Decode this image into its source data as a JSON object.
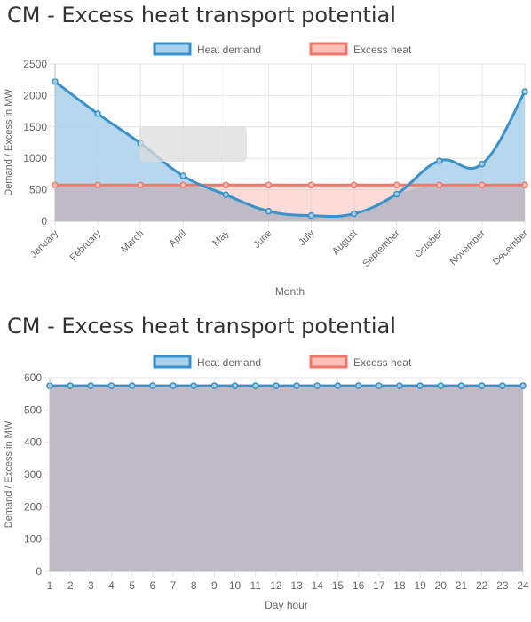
{
  "colors": {
    "heat_demand_line": "#3a92c8",
    "heat_demand_fill": "#a9d0ea",
    "excess_heat_line": "#f0786a",
    "excess_heat_fill": "#f8c0b8",
    "overlap_fill": "#b9b9c6",
    "grid": "#e6e6e6",
    "axis_text": "#666666",
    "tooltip_placeholder": "#dcdcdc"
  },
  "chart_data": [
    {
      "type": "line",
      "title": "CM - Excess heat transport potential",
      "xlabel": "Month",
      "ylabel": "Demand / Excess in MW",
      "ylim": [
        0,
        2500
      ],
      "yticks": [
        0,
        500,
        1000,
        1500,
        2000,
        2500
      ],
      "grid": true,
      "filled": true,
      "legend": {
        "position": "top",
        "entries": [
          "Heat demand",
          "Excess heat"
        ]
      },
      "categories": [
        "January",
        "February",
        "March",
        "April",
        "May",
        "June",
        "July",
        "August",
        "September",
        "October",
        "November",
        "December"
      ],
      "series": [
        {
          "name": "Heat demand",
          "values": [
            2220,
            1710,
            1240,
            720,
            420,
            160,
            90,
            120,
            430,
            960,
            910,
            2060
          ]
        },
        {
          "name": "Excess heat",
          "values": [
            575,
            575,
            575,
            575,
            575,
            575,
            575,
            575,
            575,
            575,
            575,
            575
          ]
        }
      ]
    },
    {
      "type": "line",
      "title": "CM - Excess heat transport potential",
      "xlabel": "Day hour",
      "ylabel": "Demand / Excess in MW",
      "ylim": [
        0,
        600
      ],
      "yticks": [
        0,
        100,
        200,
        300,
        400,
        500,
        600
      ],
      "grid": true,
      "filled": true,
      "legend": {
        "position": "top",
        "entries": [
          "Heat demand",
          "Excess heat"
        ]
      },
      "categories": [
        "1",
        "2",
        "3",
        "4",
        "5",
        "6",
        "7",
        "8",
        "9",
        "10",
        "11",
        "12",
        "13",
        "14",
        "15",
        "16",
        "17",
        "18",
        "19",
        "20",
        "21",
        "22",
        "23",
        "24"
      ],
      "series": [
        {
          "name": "Heat demand",
          "values": [
            575,
            575,
            575,
            575,
            575,
            575,
            575,
            575,
            575,
            575,
            575,
            575,
            575,
            575,
            575,
            575,
            575,
            575,
            575,
            575,
            575,
            575,
            575,
            575
          ]
        },
        {
          "name": "Excess heat",
          "values": [
            575,
            575,
            575,
            575,
            575,
            575,
            575,
            575,
            575,
            575,
            575,
            575,
            575,
            575,
            575,
            575,
            575,
            575,
            575,
            575,
            575,
            575,
            575,
            575
          ]
        }
      ]
    }
  ]
}
